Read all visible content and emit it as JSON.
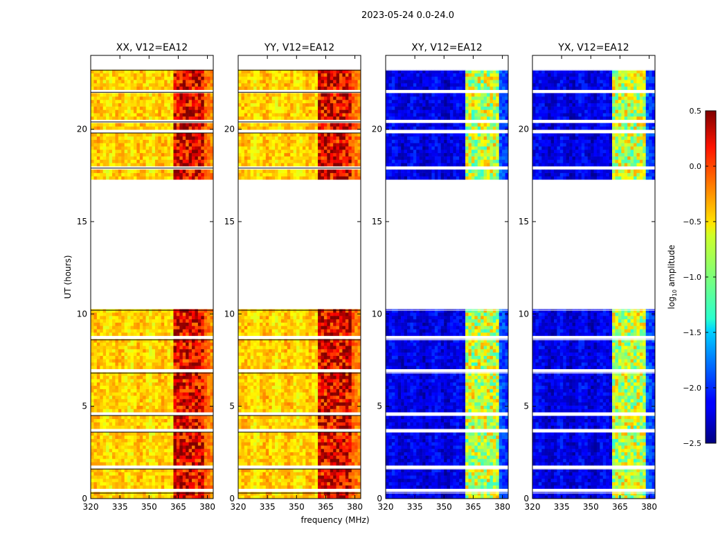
{
  "figure": {
    "suptitle": "2023-05-24 0.0-24.0"
  },
  "colorbar": {
    "label_prefix": "log",
    "label_subscript": "10",
    "label_suffix": " amplitude",
    "ticks": [
      0.5,
      0.0,
      -0.5,
      -1.0,
      -1.5,
      -2.0,
      -2.5
    ],
    "tick_labels": [
      "0.5",
      "0.0",
      "−0.5",
      "−1.0",
      "−1.5",
      "−2.0",
      "−2.5"
    ],
    "range": [
      -2.5,
      0.5
    ],
    "colormap": "jet"
  },
  "chart_data": [
    {
      "type": "heatmap",
      "title": "XX, V12=EA12",
      "xlabel": "",
      "ylabel": "UT (hours)",
      "xlim": [
        320,
        383
      ],
      "ylim": [
        0,
        24
      ],
      "x_ticks": [
        320,
        335,
        350,
        365,
        380
      ],
      "y_ticks": [
        0,
        5,
        10,
        15,
        20
      ],
      "y_tick_labels": [
        "0",
        "5",
        "10",
        "15",
        "20"
      ],
      "baseline_log10_amplitude": -0.5,
      "rfi_band_mhz": [
        363,
        378
      ],
      "rfi_band_log10_amplitude": 0.2
    },
    {
      "type": "heatmap",
      "title": "YY, V12=EA12",
      "xlabel": "frequency (MHz)",
      "ylabel": "",
      "xlim": [
        320,
        383
      ],
      "ylim": [
        0,
        24
      ],
      "x_ticks": [
        320,
        335,
        350,
        365,
        380
      ],
      "y_ticks": [
        0,
        5,
        10,
        15,
        20
      ],
      "y_tick_labels": [
        "0",
        "5",
        "10",
        "15",
        "20"
      ],
      "baseline_log10_amplitude": -0.5,
      "rfi_band_mhz": [
        361,
        378
      ],
      "rfi_band_log10_amplitude": 0.2
    },
    {
      "type": "heatmap",
      "title": "XY, V12=EA12",
      "xlabel": "",
      "ylabel": "",
      "xlim": [
        320,
        383
      ],
      "ylim": [
        0,
        24
      ],
      "x_ticks": [
        320,
        335,
        350,
        365,
        380
      ],
      "y_ticks": [
        0,
        5,
        10,
        15,
        20
      ],
      "y_tick_labels": [
        "0",
        "5",
        "10",
        "15",
        "20"
      ],
      "baseline_log10_amplitude": -2.2,
      "rfi_band_mhz": [
        361,
        378
      ],
      "rfi_band_log10_amplitude": -0.8
    },
    {
      "type": "heatmap",
      "title": "YX, V12=EA12",
      "xlabel": "",
      "ylabel": "",
      "xlim": [
        320,
        383
      ],
      "ylim": [
        0,
        24
      ],
      "x_ticks": [
        320,
        335,
        350,
        365,
        380
      ],
      "y_ticks": [
        0,
        5,
        10,
        15,
        20
      ],
      "y_tick_labels": [
        "0",
        "5",
        "10",
        "15",
        "20"
      ],
      "baseline_log10_amplitude": -2.2,
      "rfi_band_mhz": [
        361,
        378
      ],
      "rfi_band_log10_amplitude": -0.8
    }
  ],
  "data_gap_hours": [
    10.3,
    17.1
  ],
  "flagged_rows_hours": [
    0.3,
    1.6,
    3.6,
    4.5,
    6.8,
    8.6,
    10.2,
    17.9,
    19.8,
    20.4,
    22.0,
    23.2
  ]
}
